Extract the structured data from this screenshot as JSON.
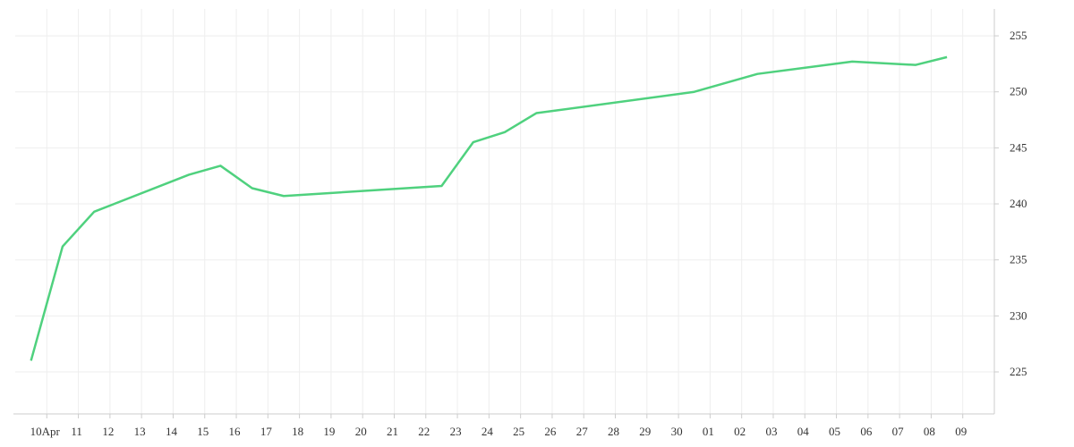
{
  "chart_data": {
    "type": "line",
    "x": [
      9.5,
      10.5,
      11.5,
      14.5,
      15.5,
      16.5,
      17.5,
      22.5,
      23.5,
      24.5,
      25.5,
      30.5,
      32.5,
      35.5,
      37.5,
      38.5
    ],
    "series": [
      {
        "color": "#4fd17e",
        "values": [
          226.0,
          236.2,
          239.3,
          242.6,
          243.4,
          241.4,
          240.7,
          241.6,
          245.5,
          246.4,
          248.1,
          250.0,
          251.6,
          252.7,
          252.4,
          253.1
        ]
      }
    ],
    "xlim": [
      9,
      40
    ],
    "xticks": [
      {
        "value": 10,
        "label": "10Apr"
      },
      11,
      12,
      13,
      14,
      15,
      16,
      17,
      18,
      19,
      20,
      21,
      22,
      23,
      24,
      25,
      26,
      27,
      28,
      29,
      30,
      {
        "value": 31,
        "label": "01"
      },
      {
        "value": 32,
        "label": "02"
      },
      {
        "value": 33,
        "label": "03"
      },
      {
        "value": 34,
        "label": "04"
      },
      {
        "value": 35,
        "label": "05"
      },
      {
        "value": 36,
        "label": "06"
      },
      {
        "value": 37,
        "label": "07"
      },
      {
        "value": 38,
        "label": "08"
      },
      {
        "value": 39,
        "label": "09"
      }
    ],
    "ylim": [
      221.25,
      257.4
    ],
    "yticks": [
      225,
      230,
      235,
      240,
      245,
      250,
      255
    ],
    "grid": true
  }
}
